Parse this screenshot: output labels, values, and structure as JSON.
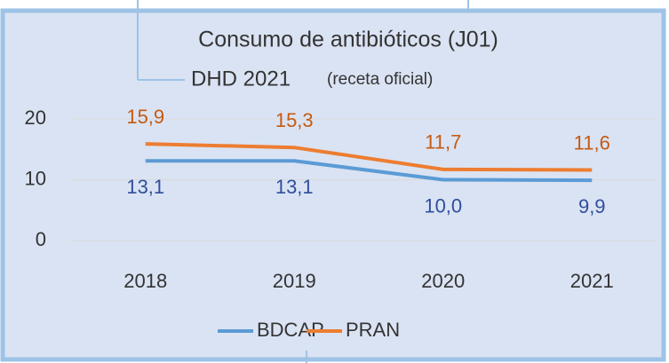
{
  "chart_data": {
    "type": "line",
    "title": "Consumo de antibióticos (J01)",
    "subtitle": "DHD 2021",
    "subtitle_note": "(receta oficial)",
    "categories": [
      "2018",
      "2019",
      "2020",
      "2021"
    ],
    "series": [
      {
        "name": "BDCAP",
        "color": "#5b9bd5",
        "label_color": "#2f4e9e",
        "values": [
          13.1,
          13.1,
          10.0,
          9.9
        ],
        "value_labels": [
          "13,1",
          "13,1",
          "10,0",
          "9,9"
        ]
      },
      {
        "name": "PRAN",
        "color": "#ed7d31",
        "label_color": "#c55a11",
        "values": [
          15.9,
          15.3,
          11.7,
          11.6
        ],
        "value_labels": [
          "15,9",
          "15,3",
          "11,7",
          "11,6"
        ]
      }
    ],
    "ylim": [
      0,
      20
    ],
    "yticks": [
      0,
      10,
      20
    ],
    "grid": true,
    "legend": "bottom"
  }
}
